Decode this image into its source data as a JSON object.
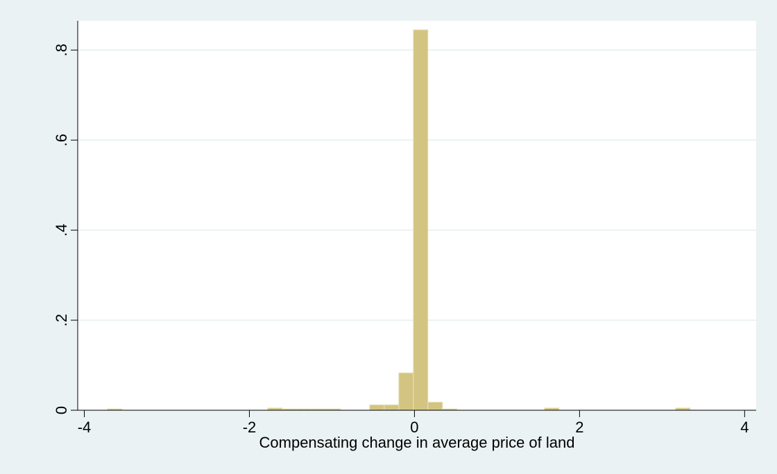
{
  "chart_data": {
    "type": "histogram",
    "x_label": "Compensating change in average price of land",
    "bins": [
      -3.72,
      -3.5435,
      -3.367,
      -3.1905,
      -3.014,
      -2.8375,
      -2.661,
      -2.4845,
      -2.308,
      -2.1315,
      -1.955,
      -1.7785,
      -1.602,
      -1.4255,
      -1.249,
      -1.0725,
      -0.896,
      -0.7195,
      -0.543,
      -0.3665,
      -0.19,
      -0.0135,
      0.163,
      0.3395,
      0.516,
      0.6925,
      0.869,
      1.0455,
      1.222,
      1.3985,
      1.575,
      1.7515,
      1.928,
      2.1045,
      2.281,
      2.4575,
      2.634,
      2.8105,
      2.987,
      3.1635,
      3.34
    ],
    "values": [
      0.003,
      0,
      0,
      0,
      0,
      0,
      0,
      0,
      0,
      0,
      0,
      0.005,
      0.003,
      0.003,
      0.003,
      0.003,
      0,
      0,
      0.012,
      0.012,
      0.083,
      0.845,
      0.018,
      0.003,
      0,
      0,
      0,
      0,
      0,
      0,
      0.005,
      0,
      0,
      0,
      0,
      0,
      0,
      0,
      0,
      0.005
    ],
    "color": "#d3c482",
    "xlim": [
      -4.08,
      4.14
    ],
    "ylim": [
      0,
      0.865
    ],
    "xticks": [
      -4,
      -2,
      0,
      2,
      4
    ],
    "yticks": [
      0,
      {
        "value": 0.2,
        "label": ".2"
      },
      {
        "value": 0.4,
        "label": ".4"
      },
      {
        "value": 0.6,
        "label": ".6"
      },
      {
        "value": 0.8,
        "label": ".8"
      }
    ],
    "grid": true
  }
}
